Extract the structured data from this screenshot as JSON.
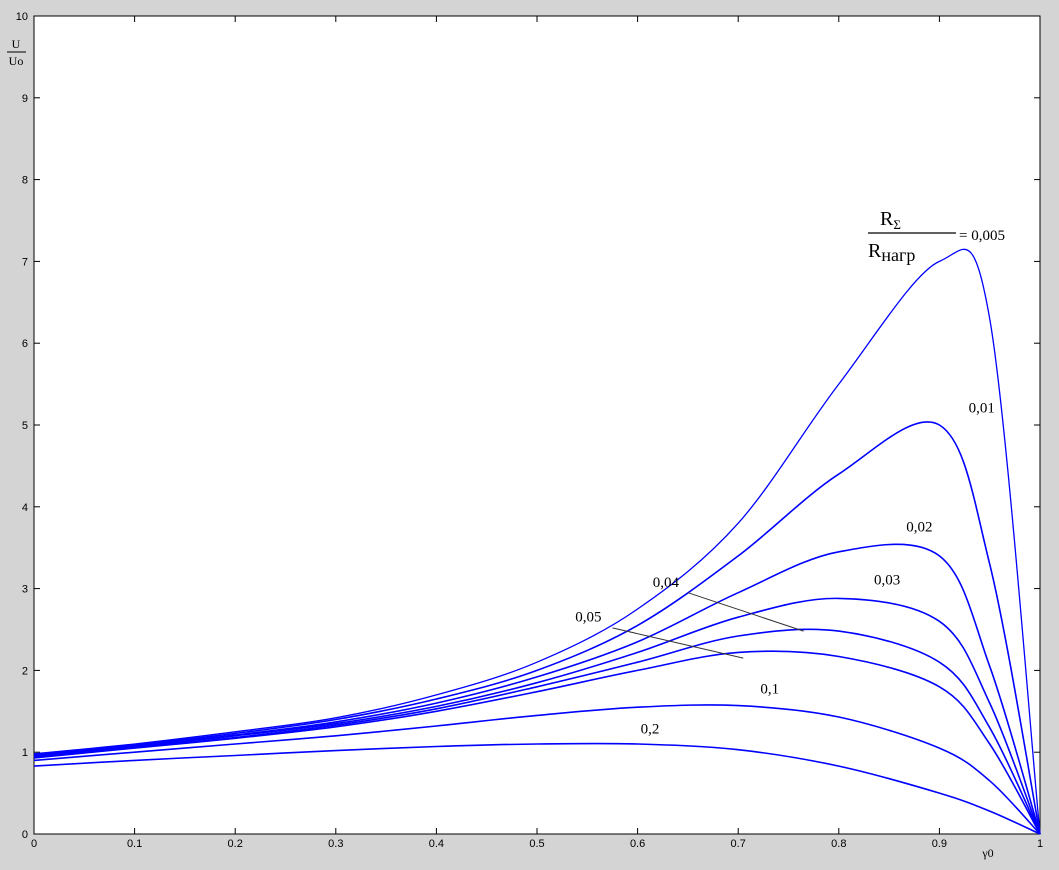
{
  "chart_data": {
    "type": "line",
    "title": "",
    "xlabel": "γ0",
    "ylabel_numerator": "U",
    "ylabel_denominator": "Uo",
    "xlim": [
      0,
      1
    ],
    "ylim": [
      0,
      10
    ],
    "grid": false,
    "xticks": [
      "0",
      "0.1",
      "0.2",
      "0.3",
      "0.4",
      "0.5",
      "0.6",
      "0.7",
      "0.8",
      "0.9",
      "1"
    ],
    "yticks": [
      "0",
      "1",
      "2",
      "3",
      "4",
      "5",
      "6",
      "7",
      "8",
      "9",
      "10"
    ],
    "legend": {
      "numerator": "R",
      "numerator_sub": "Σ",
      "denominator": "R",
      "denominator_sub": "нагр",
      "equals": "= 0,005"
    },
    "line_color": "#0000ff",
    "x": [
      0,
      0.1,
      0.2,
      0.3,
      0.4,
      0.5,
      0.6,
      0.7,
      0.8,
      0.9,
      0.95,
      1.0
    ],
    "series": [
      {
        "name": "0,005",
        "label": "0,005",
        "values": [
          0.98,
          1.1,
          1.25,
          1.42,
          1.7,
          2.1,
          2.75,
          3.8,
          5.5,
          7.0,
          6.3,
          0.0
        ]
      },
      {
        "name": "0,01",
        "label": "0,01",
        "values": [
          0.97,
          1.09,
          1.23,
          1.4,
          1.65,
          2.0,
          2.55,
          3.4,
          4.4,
          5.0,
          3.3,
          0.0
        ]
      },
      {
        "name": "0,02",
        "label": "0,02",
        "values": [
          0.96,
          1.08,
          1.21,
          1.37,
          1.6,
          1.92,
          2.35,
          2.95,
          3.45,
          3.4,
          2.05,
          0.0
        ]
      },
      {
        "name": "0,03",
        "label": "0,03",
        "values": [
          0.95,
          1.07,
          1.2,
          1.35,
          1.56,
          1.85,
          2.22,
          2.65,
          2.88,
          2.6,
          1.6,
          0.0
        ]
      },
      {
        "name": "0,04",
        "label": "0,04",
        "values": [
          0.94,
          1.06,
          1.18,
          1.33,
          1.53,
          1.8,
          2.1,
          2.42,
          2.48,
          2.1,
          1.3,
          0.0
        ]
      },
      {
        "name": "0,05",
        "label": "0,05",
        "values": [
          0.93,
          1.05,
          1.17,
          1.31,
          1.5,
          1.74,
          2.0,
          2.22,
          2.17,
          1.8,
          1.1,
          0.0
        ]
      },
      {
        "name": "0,1",
        "label": "0,1",
        "values": [
          0.9,
          1.0,
          1.1,
          1.2,
          1.32,
          1.45,
          1.55,
          1.57,
          1.43,
          1.05,
          0.65,
          0.0
        ]
      },
      {
        "name": "0,2",
        "label": "0,2",
        "values": [
          0.83,
          0.9,
          0.96,
          1.02,
          1.07,
          1.1,
          1.1,
          1.03,
          0.83,
          0.5,
          0.28,
          0.0
        ]
      }
    ]
  }
}
